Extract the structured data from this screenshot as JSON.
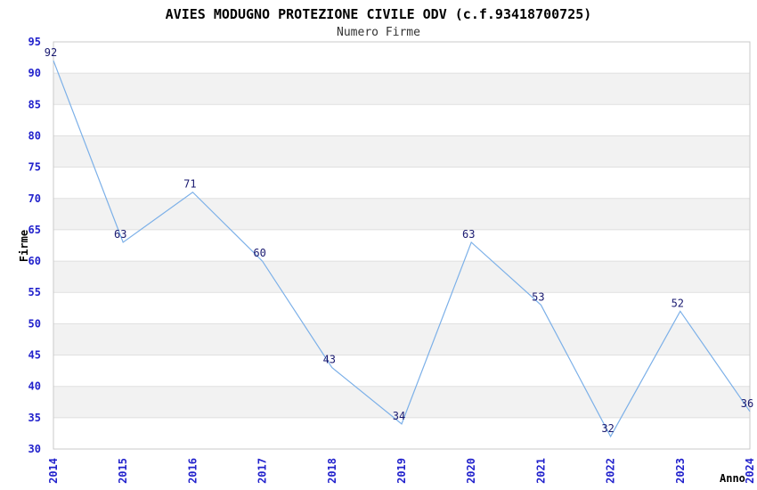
{
  "chart_data": {
    "type": "line",
    "title": "AVIES MODUGNO PROTEZIONE CIVILE ODV (c.f.93418700725)",
    "subtitle": "Numero Firme",
    "xlabel": "Anno",
    "ylabel": "Firme",
    "categories": [
      "2014",
      "2015",
      "2016",
      "2017",
      "2018",
      "2019",
      "2020",
      "2021",
      "2022",
      "2023",
      "2024"
    ],
    "values": [
      92,
      63,
      71,
      60,
      43,
      34,
      63,
      53,
      32,
      52,
      36
    ],
    "ylim": [
      30,
      95
    ],
    "ytick_step": 5,
    "grid": "horizontal-with-alternating-bands",
    "legend": "none",
    "colors": {
      "line": "#7CB0E8",
      "data_label": "#191970",
      "tick_label": "#2222CC",
      "band": "#F2F2F2",
      "gridline": "#E0E0E0",
      "border": "#C9C9C9",
      "title": "#000000",
      "subtitle": "#333333",
      "background": "#FFFFFF"
    }
  }
}
